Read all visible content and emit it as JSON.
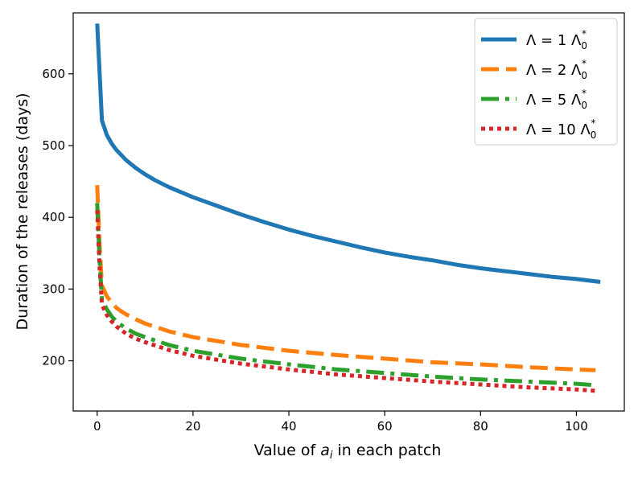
{
  "chart_data": {
    "type": "line",
    "xlabel_prefix": "Value of ",
    "xlabel_var": "a",
    "xlabel_sub": "i",
    "xlabel_suffix": " in each patch",
    "ylabel": "Duration of the releases (days)",
    "xlim": [
      -5,
      110
    ],
    "ylim": [
      130,
      685
    ],
    "xticks": [
      0,
      20,
      40,
      60,
      80,
      100
    ],
    "yticks": [
      200,
      300,
      400,
      500,
      600
    ],
    "grid": false,
    "legend_position": "top-right",
    "series": [
      {
        "name": "Λ = 1 Λ0*",
        "name_prefix": "Λ = 1 Λ",
        "name_sub": "0",
        "name_sup": "*",
        "color": "#1f77b4",
        "style": "solid",
        "x": [
          0,
          1,
          2,
          3,
          4,
          5,
          6,
          8,
          10,
          12,
          15,
          20,
          25,
          30,
          35,
          40,
          45,
          50,
          55,
          60,
          65,
          70,
          75,
          80,
          85,
          90,
          95,
          100,
          105
        ],
        "y": [
          670,
          535,
          515,
          503,
          494,
          487,
          480,
          469,
          460,
          452,
          442,
          428,
          416,
          404,
          393,
          383,
          374,
          366,
          358,
          351,
          345,
          340,
          334,
          329,
          325,
          321,
          317,
          314,
          310
        ]
      },
      {
        "name": "Λ = 2 Λ0*",
        "name_prefix": "Λ = 2 Λ",
        "name_sub": "0",
        "name_sup": "*",
        "color": "#ff7f0e",
        "style": "dashed",
        "x": [
          0,
          0.5,
          1,
          2,
          3,
          4,
          5,
          6,
          8,
          10,
          15,
          20,
          30,
          40,
          50,
          60,
          70,
          80,
          90,
          100,
          104
        ],
        "y": [
          445,
          360,
          305,
          290,
          281,
          274,
          269,
          265,
          258,
          252,
          241,
          233,
          222,
          214,
          208,
          203,
          198,
          195,
          191,
          188,
          187
        ]
      },
      {
        "name": "Λ = 5 Λ0*",
        "name_prefix": "Λ = 5 Λ",
        "name_sub": "0",
        "name_sup": "*",
        "color": "#2ca02c",
        "style": "dashdot",
        "x": [
          0,
          0.5,
          1,
          2,
          3,
          4,
          5,
          6,
          8,
          10,
          15,
          20,
          30,
          40,
          50,
          60,
          70,
          80,
          90,
          100,
          104
        ],
        "y": [
          420,
          340,
          285,
          272,
          262,
          255,
          250,
          245,
          238,
          233,
          222,
          214,
          203,
          195,
          188,
          183,
          178,
          174,
          171,
          168,
          166
        ]
      },
      {
        "name": "Λ = 10 Λ0*",
        "name_prefix": "Λ = 10 Λ",
        "name_sub": "0",
        "name_sup": "*",
        "color": "#d62728",
        "style": "dotted",
        "x": [
          0,
          0.5,
          1,
          2,
          3,
          4,
          5,
          6,
          8,
          10,
          15,
          20,
          30,
          40,
          50,
          60,
          70,
          80,
          90,
          100,
          104
        ],
        "y": [
          410,
          330,
          278,
          264,
          255,
          248,
          243,
          238,
          231,
          226,
          215,
          207,
          196,
          188,
          181,
          176,
          171,
          167,
          163,
          160,
          158
        ]
      }
    ]
  }
}
